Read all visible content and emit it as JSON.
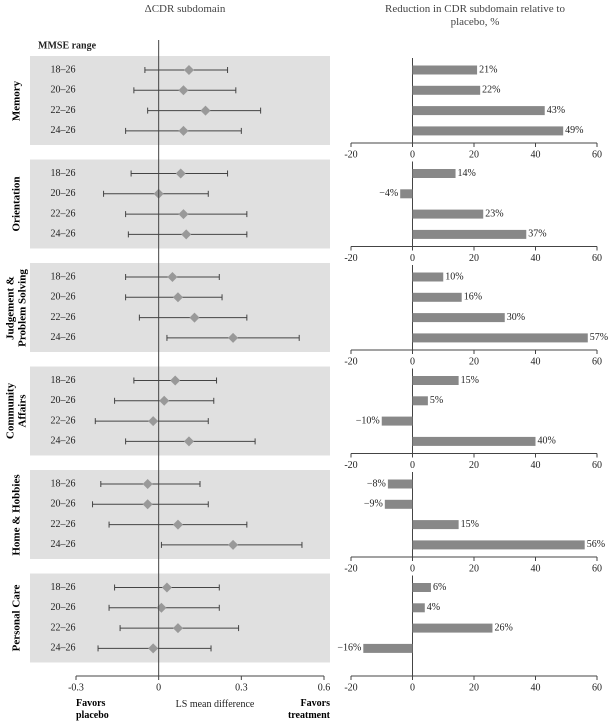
{
  "chart_data": [
    {
      "type": "forest",
      "title": "ΔCDR subdomain",
      "subtitle": "MMSE range",
      "xlabel": "LS mean difference",
      "annotations": [
        "Favors placebo",
        "Favors treatment"
      ],
      "xlim": [
        -0.3,
        0.6
      ],
      "xticks": [
        -0.3,
        0,
        0.3,
        0.6
      ],
      "color": "#999999",
      "band_color": "#e0e0e0",
      "groups": [
        {
          "name": "Memory",
          "categories": [
            "18–26",
            "20–26",
            "22–26",
            "24–26"
          ],
          "values": [
            0.11,
            0.09,
            0.17,
            0.09
          ],
          "lower": [
            -0.05,
            -0.09,
            -0.04,
            -0.12
          ],
          "upper": [
            0.25,
            0.28,
            0.37,
            0.3
          ]
        },
        {
          "name": "Orientation",
          "categories": [
            "18–26",
            "20–26",
            "22–26",
            "24–26"
          ],
          "values": [
            0.08,
            0.0,
            0.09,
            0.1
          ],
          "lower": [
            -0.1,
            -0.2,
            -0.12,
            -0.11
          ],
          "upper": [
            0.25,
            0.18,
            0.32,
            0.32
          ]
        },
        {
          "name": "Judgement & Problem Solving",
          "categories": [
            "18–26",
            "20–26",
            "22–26",
            "24–26"
          ],
          "values": [
            0.05,
            0.07,
            0.13,
            0.27
          ],
          "lower": [
            -0.12,
            -0.12,
            -0.07,
            0.03
          ],
          "upper": [
            0.22,
            0.23,
            0.32,
            0.51
          ]
        },
        {
          "name": "Community Affairs",
          "categories": [
            "18–26",
            "20–26",
            "22–26",
            "24–26"
          ],
          "values": [
            0.06,
            0.02,
            -0.02,
            0.11
          ],
          "lower": [
            -0.09,
            -0.16,
            -0.23,
            -0.12
          ],
          "upper": [
            0.21,
            0.2,
            0.18,
            0.35
          ]
        },
        {
          "name": "Home & Hobbies",
          "categories": [
            "18–26",
            "20–26",
            "22–26",
            "24–26"
          ],
          "values": [
            -0.04,
            -0.04,
            0.07,
            0.27
          ],
          "lower": [
            -0.21,
            -0.24,
            -0.18,
            0.01
          ],
          "upper": [
            0.15,
            0.18,
            0.32,
            0.52
          ]
        },
        {
          "name": "Personal Care",
          "categories": [
            "18–26",
            "20–26",
            "22–26",
            "24–26"
          ],
          "values": [
            0.03,
            0.01,
            0.07,
            -0.02
          ],
          "lower": [
            -0.16,
            -0.18,
            -0.14,
            -0.22
          ],
          "upper": [
            0.22,
            0.22,
            0.29,
            0.19
          ]
        }
      ]
    },
    {
      "type": "bar",
      "title": "Reduction in CDR subdomain relative to placebo, %",
      "xlim": [
        -20,
        60
      ],
      "xticks": [
        -20,
        0,
        20,
        40,
        60
      ],
      "color": "#888888",
      "panels": [
        {
          "values": [
            21,
            22,
            43,
            49
          ],
          "value_labels": [
            "21%",
            "22%",
            "43%",
            "49%"
          ]
        },
        {
          "values": [
            14,
            -4,
            23,
            37
          ],
          "value_labels": [
            "14%",
            "−4%",
            "23%",
            "37%"
          ]
        },
        {
          "values": [
            10,
            16,
            30,
            57
          ],
          "value_labels": [
            "10%",
            "16%",
            "30%",
            "57%"
          ]
        },
        {
          "values": [
            15,
            5,
            -10,
            40
          ],
          "value_labels": [
            "15%",
            "5%",
            "−10%",
            "40%"
          ]
        },
        {
          "values": [
            -8,
            -9,
            15,
            56
          ],
          "value_labels": [
            "−8%",
            "−9%",
            "15%",
            "56%"
          ]
        },
        {
          "values": [
            6,
            4,
            26,
            -16
          ],
          "value_labels": [
            "6%",
            "4%",
            "26%",
            "−16%"
          ]
        }
      ]
    }
  ]
}
